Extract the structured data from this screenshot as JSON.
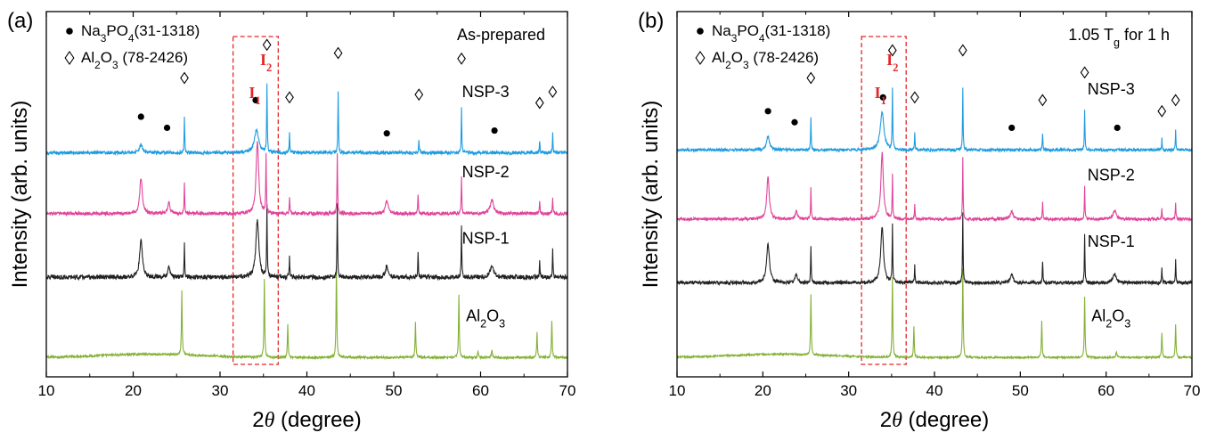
{
  "chart_data": [
    {
      "type": "line",
      "panel_label": "(a)",
      "condition_note": "As-prepared",
      "xlabel": "2θ (degree)",
      "ylabel": "Intensity (arb. units)",
      "xlim": [
        10,
        70
      ],
      "x_ticks": [
        "10",
        "20",
        "30",
        "40",
        "50",
        "60",
        "70"
      ],
      "legend": {
        "position": "top-left",
        "entries": [
          {
            "marker": "●",
            "name": "Na3PO4(31-1318)"
          },
          {
            "marker": "◊",
            "name": "Al2O3 (78-2426)"
          }
        ]
      },
      "highlight_box": {
        "x_range": [
          31.5,
          36.7
        ],
        "labels": [
          "I1",
          "I2"
        ],
        "label_x": [
          34.0,
          35.3
        ]
      },
      "series": [
        {
          "name": "Al2O3",
          "color": "#84b135",
          "baseline": 0.05,
          "noise": 0.004,
          "peaks": [
            [
              25.6,
              0.23,
              0.1
            ],
            [
              35.1,
              0.28,
              0.1
            ],
            [
              37.8,
              0.12,
              0.1
            ],
            [
              43.4,
              0.33,
              0.1
            ],
            [
              52.5,
              0.13,
              0.1
            ],
            [
              57.5,
              0.23,
              0.1
            ],
            [
              59.7,
              0.02,
              0.12
            ],
            [
              61.3,
              0.025,
              0.15
            ],
            [
              66.5,
              0.09,
              0.1
            ],
            [
              68.2,
              0.13,
              0.1
            ]
          ]
        },
        {
          "name": "NSP-1",
          "color": "#222222",
          "baseline": 0.34,
          "noise": 0.008,
          "peaks": [
            [
              20.9,
              0.13,
              0.4
            ],
            [
              24.1,
              0.04,
              0.3
            ],
            [
              25.9,
              0.12,
              0.08
            ],
            [
              34.3,
              0.21,
              0.4
            ],
            [
              35.4,
              0.25,
              0.08
            ],
            [
              38.0,
              0.07,
              0.08
            ],
            [
              43.5,
              0.26,
              0.08
            ],
            [
              49.2,
              0.04,
              0.4
            ],
            [
              52.8,
              0.09,
              0.08
            ],
            [
              57.8,
              0.18,
              0.08
            ],
            [
              61.3,
              0.04,
              0.5
            ],
            [
              66.8,
              0.06,
              0.08
            ],
            [
              68.3,
              0.1,
              0.08
            ]
          ]
        },
        {
          "name": "NSP-2",
          "color": "#e0449a",
          "baseline": 0.57,
          "noise": 0.006,
          "peaks": [
            [
              20.9,
              0.13,
              0.35
            ],
            [
              24.1,
              0.04,
              0.3
            ],
            [
              25.9,
              0.11,
              0.08
            ],
            [
              34.3,
              0.26,
              0.35
            ],
            [
              35.3,
              0.21,
              0.08
            ],
            [
              38.0,
              0.06,
              0.08
            ],
            [
              43.5,
              0.22,
              0.08
            ],
            [
              49.2,
              0.05,
              0.35
            ],
            [
              52.8,
              0.07,
              0.08
            ],
            [
              57.8,
              0.13,
              0.08
            ],
            [
              61.3,
              0.05,
              0.45
            ],
            [
              66.8,
              0.05,
              0.08
            ],
            [
              68.3,
              0.06,
              0.08
            ]
          ]
        },
        {
          "name": "NSP-3",
          "color": "#1e9be0",
          "baseline": 0.79,
          "noise": 0.006,
          "peaks": [
            [
              20.9,
              0.03,
              0.4
            ],
            [
              25.9,
              0.13,
              0.08
            ],
            [
              34.2,
              0.08,
              0.6
            ],
            [
              35.4,
              0.25,
              0.08
            ],
            [
              38.0,
              0.07,
              0.08
            ],
            [
              43.6,
              0.22,
              0.08
            ],
            [
              52.9,
              0.05,
              0.08
            ],
            [
              57.8,
              0.16,
              0.08
            ],
            [
              66.8,
              0.04,
              0.08
            ],
            [
              68.3,
              0.07,
              0.08
            ]
          ]
        }
      ],
      "series_labels": [
        {
          "text": "Al2O3",
          "y": 0.2
        },
        {
          "text": "NSP-1",
          "y": 0.48
        },
        {
          "text": "NSP-2",
          "y": 0.72
        },
        {
          "text": "NSP-3",
          "y": 1.01
        }
      ],
      "markers": [
        {
          "type": "circle",
          "x": 20.9,
          "y": 0.92
        },
        {
          "type": "circle",
          "x": 23.9,
          "y": 0.88
        },
        {
          "type": "circle",
          "x": 34.1,
          "y": 0.98
        },
        {
          "type": "circle",
          "x": 49.2,
          "y": 0.86
        },
        {
          "type": "circle",
          "x": 61.6,
          "y": 0.87
        },
        {
          "type": "diamond",
          "x": 25.9,
          "y": 1.06
        },
        {
          "type": "diamond",
          "x": 35.4,
          "y": 1.18
        },
        {
          "type": "diamond",
          "x": 38.0,
          "y": 0.99
        },
        {
          "type": "diamond",
          "x": 43.6,
          "y": 1.15
        },
        {
          "type": "diamond",
          "x": 52.9,
          "y": 1.0
        },
        {
          "type": "diamond",
          "x": 57.8,
          "y": 1.13
        },
        {
          "type": "diamond",
          "x": 66.8,
          "y": 0.97
        },
        {
          "type": "diamond",
          "x": 68.3,
          "y": 1.01
        }
      ]
    },
    {
      "type": "line",
      "panel_label": "(b)",
      "condition_note": "1.05 Tg for 1 h",
      "xlabel": "2θ (degree)",
      "ylabel": "Intensity (arb. units)",
      "xlim": [
        10,
        70
      ],
      "x_ticks": [
        "10",
        "20",
        "30",
        "40",
        "50",
        "60",
        "70"
      ],
      "legend": {
        "position": "top-left",
        "entries": [
          {
            "marker": "●",
            "name": "Na3PO4(31-1318)"
          },
          {
            "marker": "◊",
            "name": "Al2O3 (78-2426)"
          }
        ]
      },
      "highlight_box": {
        "x_range": [
          31.5,
          36.7
        ],
        "labels": [
          "I1",
          "I2"
        ],
        "label_x": [
          33.7,
          35.1
        ]
      },
      "series": [
        {
          "name": "Al2O3",
          "color": "#84b135",
          "baseline": 0.05,
          "noise": 0.003,
          "peaks": [
            [
              25.6,
              0.22,
              0.1
            ],
            [
              35.1,
              0.29,
              0.1
            ],
            [
              37.6,
              0.11,
              0.1
            ],
            [
              43.3,
              0.32,
              0.1
            ],
            [
              52.5,
              0.13,
              0.1
            ],
            [
              57.5,
              0.22,
              0.1
            ],
            [
              61.2,
              0.02,
              0.15
            ],
            [
              66.5,
              0.09,
              0.1
            ],
            [
              68.1,
              0.12,
              0.1
            ]
          ]
        },
        {
          "name": "NSP-1",
          "color": "#222222",
          "baseline": 0.32,
          "noise": 0.006,
          "peaks": [
            [
              20.6,
              0.14,
              0.4
            ],
            [
              23.9,
              0.03,
              0.3
            ],
            [
              25.6,
              0.13,
              0.08
            ],
            [
              33.9,
              0.2,
              0.4
            ],
            [
              35.1,
              0.21,
              0.08
            ],
            [
              37.7,
              0.06,
              0.08
            ],
            [
              43.3,
              0.25,
              0.08
            ],
            [
              49.0,
              0.03,
              0.4
            ],
            [
              52.6,
              0.08,
              0.08
            ],
            [
              57.5,
              0.17,
              0.08
            ],
            [
              61.0,
              0.03,
              0.5
            ],
            [
              66.5,
              0.05,
              0.08
            ],
            [
              68.1,
              0.08,
              0.08
            ]
          ]
        },
        {
          "name": "NSP-2",
          "color": "#e0449a",
          "baseline": 0.55,
          "noise": 0.005,
          "peaks": [
            [
              20.6,
              0.15,
              0.35
            ],
            [
              23.9,
              0.03,
              0.3
            ],
            [
              25.6,
              0.11,
              0.08
            ],
            [
              33.9,
              0.24,
              0.35
            ],
            [
              35.1,
              0.16,
              0.08
            ],
            [
              37.7,
              0.05,
              0.08
            ],
            [
              43.3,
              0.22,
              0.08
            ],
            [
              49.0,
              0.03,
              0.35
            ],
            [
              52.6,
              0.06,
              0.08
            ],
            [
              57.5,
              0.12,
              0.08
            ],
            [
              61.0,
              0.03,
              0.45
            ],
            [
              66.5,
              0.04,
              0.08
            ],
            [
              68.1,
              0.06,
              0.08
            ]
          ]
        },
        {
          "name": "NSP-3",
          "color": "#1e9be0",
          "baseline": 0.8,
          "noise": 0.005,
          "peaks": [
            [
              20.6,
              0.05,
              0.4
            ],
            [
              25.6,
              0.12,
              0.08
            ],
            [
              33.9,
              0.14,
              0.5
            ],
            [
              35.1,
              0.22,
              0.08
            ],
            [
              37.7,
              0.06,
              0.08
            ],
            [
              43.3,
              0.22,
              0.08
            ],
            [
              52.6,
              0.06,
              0.08
            ],
            [
              57.5,
              0.15,
              0.08
            ],
            [
              66.5,
              0.04,
              0.08
            ],
            [
              68.1,
              0.07,
              0.08
            ]
          ]
        }
      ],
      "series_labels": [
        {
          "text": "Al2O3",
          "y": 0.2
        },
        {
          "text": "NSP-1",
          "y": 0.47
        },
        {
          "text": "NSP-2",
          "y": 0.71
        },
        {
          "text": "NSP-3",
          "y": 1.02
        }
      ],
      "markers": [
        {
          "type": "circle",
          "x": 20.6,
          "y": 0.94
        },
        {
          "type": "circle",
          "x": 23.7,
          "y": 0.9
        },
        {
          "type": "circle",
          "x": 34.0,
          "y": 0.99
        },
        {
          "type": "circle",
          "x": 49.0,
          "y": 0.88
        },
        {
          "type": "circle",
          "x": 61.3,
          "y": 0.88
        },
        {
          "type": "diamond",
          "x": 25.6,
          "y": 1.06
        },
        {
          "type": "diamond",
          "x": 35.1,
          "y": 1.16
        },
        {
          "type": "diamond",
          "x": 37.7,
          "y": 0.99
        },
        {
          "type": "diamond",
          "x": 43.3,
          "y": 1.16
        },
        {
          "type": "diamond",
          "x": 52.6,
          "y": 0.98
        },
        {
          "type": "diamond",
          "x": 57.5,
          "y": 1.08
        },
        {
          "type": "diamond",
          "x": 66.5,
          "y": 0.94
        },
        {
          "type": "diamond",
          "x": 68.1,
          "y": 0.98
        }
      ]
    }
  ]
}
